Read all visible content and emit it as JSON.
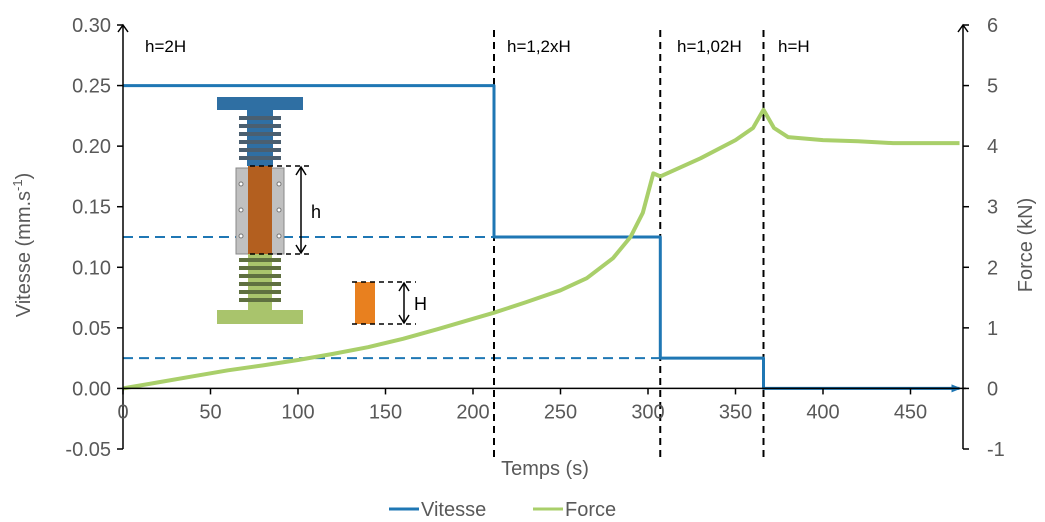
{
  "chart_data": {
    "type": "line",
    "title": "",
    "xlabel": "Temps (s)",
    "ylabel_left": "Vitesse (mm.s",
    "ylabel_left_sup": "-1",
    "ylabel_left_tail": ")",
    "ylabel_right": "Force (kN)",
    "xlim": [
      0,
      480
    ],
    "ylim_left": [
      -0.05,
      0.3
    ],
    "ylim_right": [
      -1,
      6
    ],
    "x_ticks": [
      "0",
      "50",
      "100",
      "150",
      "200",
      "250",
      "300",
      "350",
      "400",
      "450"
    ],
    "x_tick_values": [
      0,
      50,
      100,
      150,
      200,
      250,
      300,
      350,
      400,
      450
    ],
    "y_left_ticks": [
      "-0.05",
      "0.00",
      "0.05",
      "0.10",
      "0.15",
      "0.20",
      "0.25",
      "0.30"
    ],
    "y_left_tick_values": [
      -0.05,
      0.0,
      0.05,
      0.1,
      0.15,
      0.2,
      0.25,
      0.3
    ],
    "y_right_ticks": [
      "-1",
      "0",
      "1",
      "2",
      "3",
      "4",
      "5",
      "6"
    ],
    "y_right_tick_values": [
      -1,
      0,
      1,
      2,
      3,
      4,
      5,
      6
    ],
    "grid": false,
    "legend_position": "bottom",
    "series": [
      {
        "name": "Vitesse",
        "axis": "left",
        "color": "#1f77b4",
        "x": [
          0,
          212,
          212,
          307,
          307,
          366,
          366,
          478
        ],
        "y": [
          0.25,
          0.25,
          0.125,
          0.125,
          0.025,
          0.025,
          0.0,
          0.0
        ]
      },
      {
        "name": "Force",
        "axis": "right",
        "color": "#a9cf6a",
        "x": [
          0,
          20,
          40,
          60,
          80,
          100,
          120,
          140,
          160,
          180,
          200,
          212,
          230,
          250,
          265,
          280,
          290,
          297,
          303,
          307,
          330,
          350,
          360,
          366,
          372,
          380,
          400,
          420,
          440,
          460,
          478
        ],
        "y": [
          0.0,
          0.1,
          0.2,
          0.3,
          0.38,
          0.47,
          0.57,
          0.68,
          0.82,
          0.98,
          1.15,
          1.25,
          1.42,
          1.62,
          1.82,
          2.15,
          2.5,
          2.9,
          3.55,
          3.5,
          3.8,
          4.1,
          4.3,
          4.6,
          4.3,
          4.15,
          4.1,
          4.08,
          4.05,
          4.05,
          4.05
        ]
      }
    ],
    "reference_lines": {
      "color": "#1f77b4",
      "y_values": [
        0.125,
        0.025
      ]
    },
    "phase_boundaries": {
      "color": "#000000",
      "x_values": [
        212,
        307,
        366
      ]
    },
    "annotations": [
      "h=2H",
      "h=1,2xH",
      "h=1,02H",
      "h=H"
    ],
    "legend": [
      "Vitesse",
      "Force"
    ]
  },
  "inset": {
    "label_h": "h",
    "label_H": "H",
    "colors": {
      "top_part": "#2f6fa3",
      "spring": "#5a6f7f",
      "sample": "#b35f1f",
      "sleeve": "#b8b8b8",
      "bottom_part": "#a9c46c",
      "sample_small": "#e8801f"
    }
  }
}
